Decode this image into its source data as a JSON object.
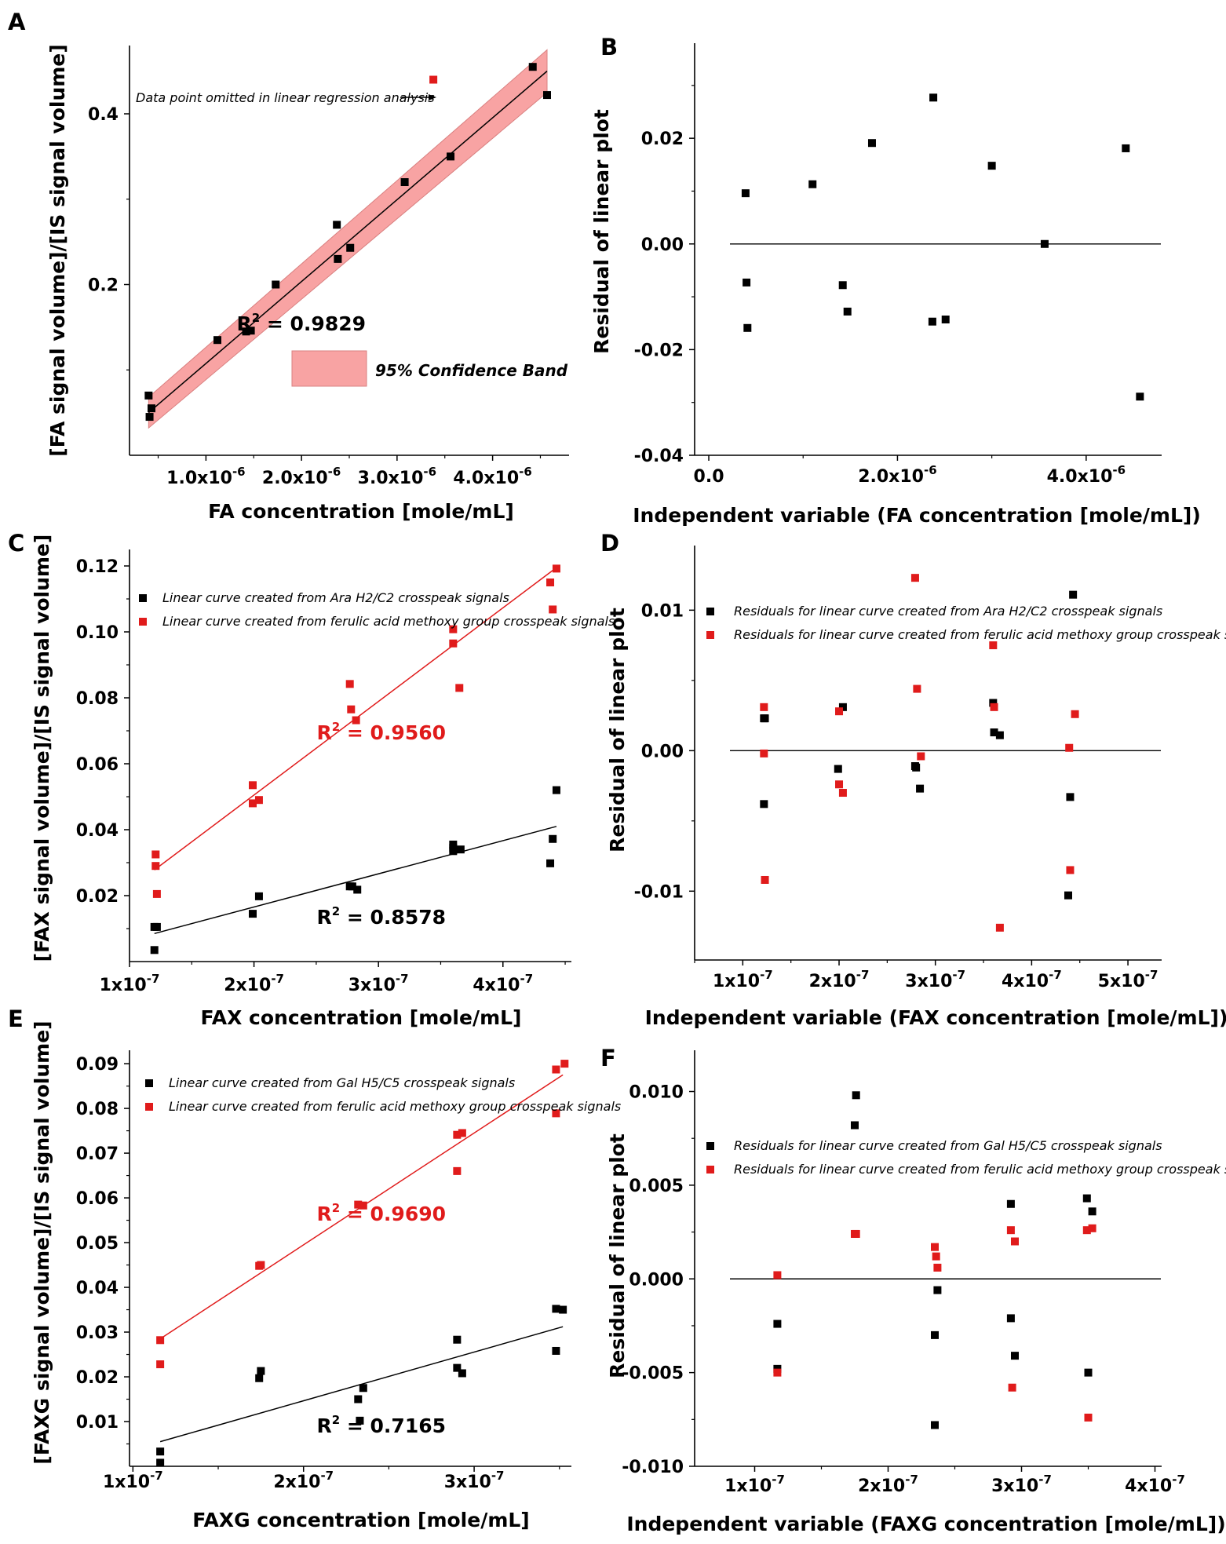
{
  "colors": {
    "black_series": "#000000",
    "red_series": "#e01b1b",
    "band_fill": "#f8a3a3",
    "band_edge": "#d98080"
  },
  "chart_data": [
    {
      "id": "A",
      "letter": "A",
      "type": "scatter",
      "xlabel": "FA concentration [mole/mL]",
      "ylabel": "[FA signal volume]/[IS signal volume]",
      "xlim": [
        2e-07,
        4.8e-06
      ],
      "ylim": [
        0.0,
        0.48
      ],
      "xticks": [
        {
          "v": 1e-06,
          "m": "1.0x10",
          "e": "-6"
        },
        {
          "v": 2e-06,
          "m": "2.0x10",
          "e": "-6"
        },
        {
          "v": 3e-06,
          "m": "3.0x10",
          "e": "-6"
        },
        {
          "v": 4e-06,
          "m": "4.0x10",
          "e": "-6"
        }
      ],
      "yticks": [
        {
          "v": 0.2,
          "t": "0.2"
        },
        {
          "v": 0.4,
          "t": "0.4"
        }
      ],
      "series": [
        {
          "name": "FA",
          "color": "black",
          "x": [
            4e-07,
            4.3e-07,
            4.1e-07,
            1.12e-06,
            1.42e-06,
            1.47e-06,
            1.73e-06,
            2.38e-06,
            2.37e-06,
            2.51e-06,
            3.08e-06,
            3.56e-06,
            4.42e-06,
            4.57e-06
          ],
          "y": [
            0.07,
            0.055,
            0.045,
            0.135,
            0.145,
            0.146,
            0.2,
            0.23,
            0.27,
            0.243,
            0.32,
            0.35,
            0.455,
            0.422
          ]
        },
        {
          "name": "Omitted",
          "color": "red",
          "x": [
            3.38e-06
          ],
          "y": [
            0.44
          ]
        }
      ],
      "fit_lines": [
        {
          "color": "black",
          "x": [
            4e-07,
            4.57e-06
          ],
          "y": [
            0.05,
            0.45
          ]
        }
      ],
      "confidence_band": {
        "x": [
          4e-07,
          4.57e-06
        ],
        "lower": [
          0.032,
          0.425
        ],
        "upper": [
          0.068,
          0.475
        ],
        "label": "95% Confidence Band"
      },
      "annotation": "Data point omitted in linear regression analysis",
      "r2": [
        {
          "text": "R",
          "sup": "2",
          "rest": " = 0.9829",
          "color": "black"
        }
      ]
    },
    {
      "id": "B",
      "letter": "B",
      "type": "scatter",
      "xlabel": "Independent variable (FA concentration [mole/mL])",
      "ylabel": "Residual of linear plot",
      "xlim": [
        -1.5e-07,
        4.8e-06
      ],
      "ylim": [
        -0.04,
        0.038
      ],
      "xticks": [
        {
          "v": 0,
          "m": "0.0",
          "e": ""
        },
        {
          "v": 2e-06,
          "m": "2.0x10",
          "e": "-6"
        },
        {
          "v": 4e-06,
          "m": "4.0x10",
          "e": "-6"
        }
      ],
      "yticks": [
        {
          "v": 0.02,
          "t": "0.02"
        },
        {
          "v": 0,
          "t": "0.00"
        },
        {
          "v": -0.02,
          "t": "-0.02"
        },
        {
          "v": -0.04,
          "t": "-0.04"
        }
      ],
      "zero_line": true,
      "series": [
        {
          "name": "Residuals",
          "color": "black",
          "x": [
            3.9e-07,
            4e-07,
            4.1e-07,
            1.1e-06,
            1.42e-06,
            1.47e-06,
            1.73e-06,
            2.37e-06,
            2.38e-06,
            2.51e-06,
            3e-06,
            3.56e-06,
            4.42e-06,
            4.57e-06
          ],
          "y": [
            0.0096,
            -0.0073,
            -0.0159,
            0.0113,
            -0.0078,
            -0.0128,
            0.0191,
            -0.0147,
            0.0277,
            -0.0143,
            0.0148,
            0.0,
            0.0181,
            -0.0289
          ]
        }
      ]
    },
    {
      "id": "C",
      "letter": "C",
      "type": "scatter",
      "xlabel": "FAX concentration [mole/mL]",
      "ylabel": "[FAX signal volume]/[IS signal volume]",
      "xlim": [
        1e-07,
        4.55e-07
      ],
      "ylim": [
        0.0,
        0.125
      ],
      "xticks": [
        {
          "v": 1e-07,
          "m": "1x10",
          "e": "-7"
        },
        {
          "v": 2e-07,
          "m": "2x10",
          "e": "-7"
        },
        {
          "v": 3e-07,
          "m": "3x10",
          "e": "-7"
        },
        {
          "v": 4e-07,
          "m": "4x10",
          "e": "-7"
        }
      ],
      "yticks": [
        {
          "v": 0.02,
          "t": "0.02"
        },
        {
          "v": 0.04,
          "t": "0.04"
        },
        {
          "v": 0.06,
          "t": "0.06"
        },
        {
          "v": 0.08,
          "t": "0.08"
        },
        {
          "v": 0.1,
          "t": "0.10"
        },
        {
          "v": 0.12,
          "t": "0.12"
        }
      ],
      "legend": [
        "Linear curve created from Ara H2/C2 crosspeak signals",
        "Linear curve created from ferulic acid methoxy group crosspeak signals"
      ],
      "series": [
        {
          "name": "Ara H2/C2",
          "color": "black",
          "x": [
            1.2e-07,
            1.22e-07,
            1.2e-07,
            1.99e-07,
            2.04e-07,
            2.77e-07,
            2.79e-07,
            2.83e-07,
            3.6e-07,
            3.6e-07,
            3.6e-07,
            3.66e-07,
            4.38e-07,
            4.4e-07,
            4.43e-07
          ],
          "y": [
            0.0105,
            0.0105,
            0.0035,
            0.0145,
            0.0198,
            0.0228,
            0.0228,
            0.0218,
            0.0355,
            0.0345,
            0.0335,
            0.034,
            0.0298,
            0.0372,
            0.052
          ]
        },
        {
          "name": "Ferulic acid methoxy",
          "color": "red",
          "x": [
            1.21e-07,
            1.21e-07,
            1.22e-07,
            1.99e-07,
            1.99e-07,
            2.04e-07,
            2.77e-07,
            2.78e-07,
            2.82e-07,
            3.6e-07,
            3.6e-07,
            3.65e-07,
            4.38e-07,
            4.4e-07,
            4.43e-07
          ],
          "y": [
            0.0325,
            0.029,
            0.0205,
            0.0535,
            0.048,
            0.049,
            0.0842,
            0.0765,
            0.0732,
            0.1008,
            0.0965,
            0.083,
            0.115,
            0.1068,
            0.1192
          ]
        }
      ],
      "fit_lines": [
        {
          "color": "black",
          "x": [
            1.2e-07,
            4.43e-07
          ],
          "y": [
            0.0085,
            0.041
          ]
        },
        {
          "color": "red",
          "x": [
            1.2e-07,
            4.43e-07
          ],
          "y": [
            0.0278,
            0.1195
          ]
        }
      ],
      "r2": [
        {
          "text": "R",
          "sup": "2",
          "rest": " = 0.9560",
          "color": "red"
        },
        {
          "text": "R",
          "sup": "2",
          "rest": " = 0.8578",
          "color": "black"
        }
      ]
    },
    {
      "id": "D",
      "letter": "D",
      "type": "scatter",
      "xlabel": "Independent variable (FAX concentration [mole/mL])",
      "ylabel": "Residual of linear plot",
      "xlim": [
        5e-08,
        5.35e-07
      ],
      "ylim": [
        -0.0149,
        0.0146
      ],
      "xticks": [
        {
          "v": 1e-07,
          "m": "1x10",
          "e": "-7"
        },
        {
          "v": 2e-07,
          "m": "2x10",
          "e": "-7"
        },
        {
          "v": 3e-07,
          "m": "3x10",
          "e": "-7"
        },
        {
          "v": 4e-07,
          "m": "4x10",
          "e": "-7"
        },
        {
          "v": 5e-07,
          "m": "5x10",
          "e": "-7"
        }
      ],
      "yticks": [
        {
          "v": 0.01,
          "t": "0.01"
        },
        {
          "v": 0,
          "t": "0.00"
        },
        {
          "v": -0.01,
          "t": "-0.01"
        }
      ],
      "zero_line": true,
      "legend": [
        "Residuals for linear curve created from Ara H2/C2 crosspeak signals",
        "Residuals for linear curve created from ferulic acid methoxy group crosspeak signals"
      ],
      "series": [
        {
          "name": "Ara H2/C2 residuals",
          "color": "black",
          "x": [
            1.22e-07,
            1.23e-07,
            1.22e-07,
            1.99e-07,
            2.04e-07,
            2.79e-07,
            2.8e-07,
            2.84e-07,
            3.6e-07,
            3.61e-07,
            3.67e-07,
            4.38e-07,
            4.4e-07,
            4.43e-07
          ],
          "y": [
            0.0023,
            0.0023,
            -0.0038,
            -0.0013,
            0.0031,
            -0.0011,
            -0.0012,
            -0.0027,
            0.0034,
            0.0013,
            0.0011,
            -0.0103,
            -0.0033,
            0.0111
          ]
        },
        {
          "name": "Ferulic acid methoxy residuals",
          "color": "red",
          "x": [
            1.22e-07,
            1.22e-07,
            1.23e-07,
            2e-07,
            2e-07,
            2.04e-07,
            2.79e-07,
            2.81e-07,
            2.85e-07,
            3.6e-07,
            3.61e-07,
            3.67e-07,
            4.39e-07,
            4.4e-07,
            4.45e-07
          ],
          "y": [
            0.0031,
            -0.0002,
            -0.0092,
            0.0028,
            -0.0024,
            -0.003,
            0.0123,
            0.0044,
            -0.0004,
            0.0075,
            0.0031,
            -0.0126,
            0.0002,
            -0.0085,
            0.0026
          ]
        }
      ]
    },
    {
      "id": "E",
      "letter": "E",
      "type": "scatter",
      "xlabel": "FAXG concentration [mole/mL]",
      "ylabel": "[FAXG signal volume]/[IS signal volume]",
      "xlim": [
        9.8e-08,
        3.57e-07
      ],
      "ylim": [
        0.0,
        0.093
      ],
      "xticks": [
        {
          "v": 1e-07,
          "m": "1x10",
          "e": "-7"
        },
        {
          "v": 2e-07,
          "m": "2x10",
          "e": "-7"
        },
        {
          "v": 3e-07,
          "m": "3x10",
          "e": "-7"
        }
      ],
      "yticks": [
        {
          "v": 0.01,
          "t": "0.01"
        },
        {
          "v": 0.02,
          "t": "0.02"
        },
        {
          "v": 0.03,
          "t": "0.03"
        },
        {
          "v": 0.04,
          "t": "0.04"
        },
        {
          "v": 0.05,
          "t": "0.05"
        },
        {
          "v": 0.06,
          "t": "0.06"
        },
        {
          "v": 0.07,
          "t": "0.07"
        },
        {
          "v": 0.08,
          "t": "0.08"
        },
        {
          "v": 0.09,
          "t": "0.09"
        }
      ],
      "legend": [
        "Linear curve created from Gal H5/C5 crosspeak signals",
        "Linear curve created from ferulic acid methoxy group crosspeak signals"
      ],
      "series": [
        {
          "name": "Gal H5/C5",
          "color": "black",
          "x": [
            1.16e-07,
            1.16e-07,
            1.74e-07,
            1.75e-07,
            2.32e-07,
            2.33e-07,
            2.35e-07,
            2.9e-07,
            2.9e-07,
            2.93e-07,
            3.48e-07,
            3.48e-07,
            3.52e-07
          ],
          "y": [
            0.0033,
            0.0008,
            0.0197,
            0.0213,
            0.015,
            0.0102,
            0.0175,
            0.0283,
            0.022,
            0.0208,
            0.0352,
            0.0258,
            0.035
          ]
        },
        {
          "name": "Ferulic acid methoxy",
          "color": "red",
          "x": [
            1.16e-07,
            1.16e-07,
            1.74e-07,
            1.75e-07,
            2.32e-07,
            2.35e-07,
            2.9e-07,
            2.9e-07,
            2.93e-07,
            3.48e-07,
            3.48e-07,
            3.53e-07
          ],
          "y": [
            0.0282,
            0.0228,
            0.0448,
            0.045,
            0.0585,
            0.0583,
            0.0741,
            0.066,
            0.0745,
            0.0887,
            0.0789,
            0.09
          ]
        }
      ],
      "fit_lines": [
        {
          "color": "black",
          "x": [
            1.16e-07,
            3.52e-07
          ],
          "y": [
            0.0055,
            0.0312
          ]
        },
        {
          "color": "red",
          "x": [
            1.16e-07,
            3.52e-07
          ],
          "y": [
            0.0285,
            0.0875
          ]
        }
      ],
      "r2": [
        {
          "text": "R",
          "sup": "2",
          "rest": " = 0.9690",
          "color": "red"
        },
        {
          "text": "R",
          "sup": "2",
          "rest": " = 0.7165",
          "color": "black"
        }
      ]
    },
    {
      "id": "F",
      "letter": "F",
      "type": "scatter",
      "xlabel": "Independent variable (FAXG concentration [mole/mL])",
      "ylabel": "Residual of linear plot",
      "xlim": [
        5.5e-08,
        4.05e-07
      ],
      "ylim": [
        -0.01,
        0.0122
      ],
      "xticks": [
        {
          "v": 1e-07,
          "m": "1x10",
          "e": "-7"
        },
        {
          "v": 2e-07,
          "m": "2x10",
          "e": "-7"
        },
        {
          "v": 3e-07,
          "m": "3x10",
          "e": "-7"
        },
        {
          "v": 4e-07,
          "m": "4x10",
          "e": "-7"
        }
      ],
      "yticks": [
        {
          "v": 0.01,
          "t": "0.010"
        },
        {
          "v": 0.005,
          "t": "0.005"
        },
        {
          "v": 0,
          "t": "0.000"
        },
        {
          "v": -0.005,
          "t": "-0.005"
        },
        {
          "v": -0.01,
          "t": "-0.010"
        }
      ],
      "zero_line": true,
      "legend": [
        "Residuals for linear curve created from Gal H5/C5 crosspeak signals",
        "Residuals for linear curve created from ferulic acid methoxy group crosspeak signals"
      ],
      "series": [
        {
          "name": "Gal H5/C5 residuals",
          "color": "black",
          "x": [
            1.17e-07,
            1.17e-07,
            1.75e-07,
            1.76e-07,
            2.35e-07,
            2.35e-07,
            2.37e-07,
            2.92e-07,
            2.92e-07,
            2.95e-07,
            3.49e-07,
            3.5e-07,
            3.53e-07
          ],
          "y": [
            -0.0024,
            -0.0048,
            0.0082,
            0.0098,
            -0.003,
            -0.0078,
            -0.0006,
            0.004,
            -0.0021,
            -0.0041,
            0.0043,
            -0.005,
            0.0036
          ]
        },
        {
          "name": "Ferulic acid methoxy residuals",
          "color": "red",
          "x": [
            1.17e-07,
            1.17e-07,
            1.75e-07,
            1.76e-07,
            2.35e-07,
            2.36e-07,
            2.37e-07,
            2.92e-07,
            2.93e-07,
            2.95e-07,
            3.49e-07,
            3.5e-07,
            3.53e-07
          ],
          "y": [
            0.0002,
            -0.005,
            0.0024,
            0.0024,
            0.0017,
            0.0012,
            0.0006,
            0.0026,
            -0.0058,
            0.002,
            0.0026,
            -0.0074,
            0.0027
          ]
        }
      ]
    }
  ]
}
